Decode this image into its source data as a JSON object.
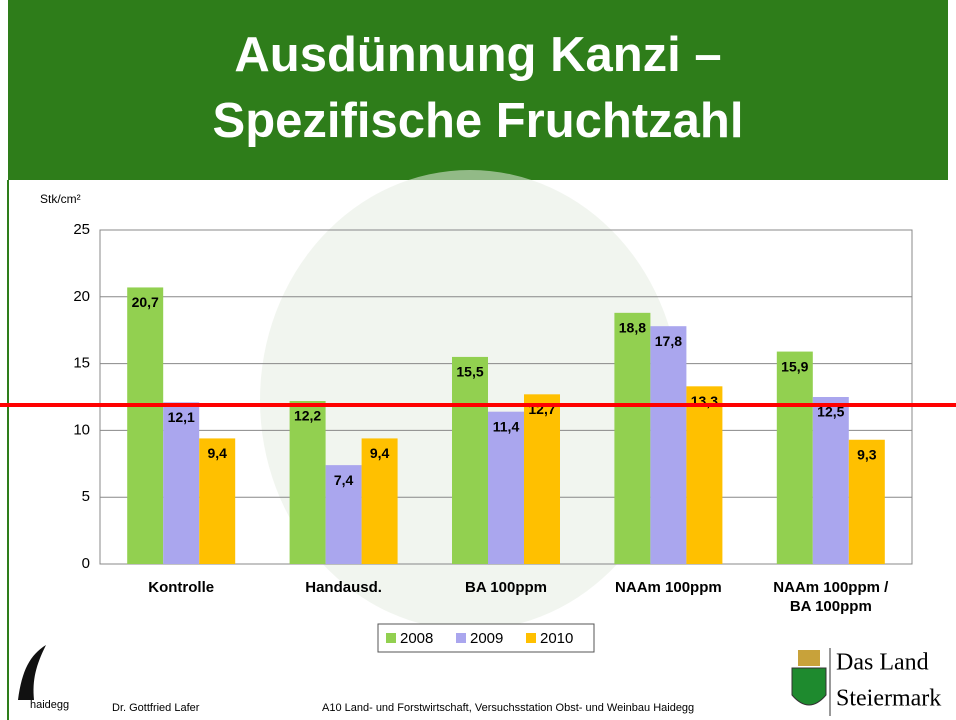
{
  "chart_data": {
    "type": "bar",
    "title": "Ausdünnung Kanzi – Spezifische Fruchtzahl",
    "y_label": "Stk/cm²",
    "categories": [
      "Kontrolle",
      "Handausd.",
      "BA 100ppm",
      "NAAm 100ppm",
      "NAAm 100ppm / BA 100ppm"
    ],
    "series": [
      {
        "name": "2008",
        "color": "#92d050",
        "values": [
          20.7,
          12.2,
          15.5,
          18.8,
          15.9
        ],
        "value_labels": [
          "20,7",
          "12,2",
          "15,5",
          "18,8",
          "15,9"
        ]
      },
      {
        "name": "2009",
        "color": "#aaa6ee",
        "values": [
          12.1,
          7.4,
          11.4,
          17.8,
          12.5
        ],
        "value_labels": [
          "12,1",
          "7,4",
          "11,4",
          "17,8",
          "12,5"
        ]
      },
      {
        "name": "2010",
        "color": "#ffc000",
        "values": [
          9.4,
          9.4,
          12.7,
          13.3,
          9.3
        ],
        "value_labels": [
          "9,4",
          "9,4",
          "12,7",
          "13,3",
          "9,3"
        ]
      }
    ],
    "reference_line": {
      "value": 11.9,
      "color": "#ff0000"
    },
    "ylim": [
      0,
      25
    ],
    "yticks": [
      0,
      5,
      10,
      15,
      20,
      25
    ],
    "grid": true,
    "legend": "bottom"
  },
  "footer": {
    "left_logo": "haidegg",
    "author": "Dr. Gottfried Lafer",
    "institution": "A10 Land- und Forstwirtschaft, Versuchsstation Obst- und Weinbau Haidegg",
    "logo_line1": "Das Land",
    "logo_line2": "Steiermark"
  }
}
